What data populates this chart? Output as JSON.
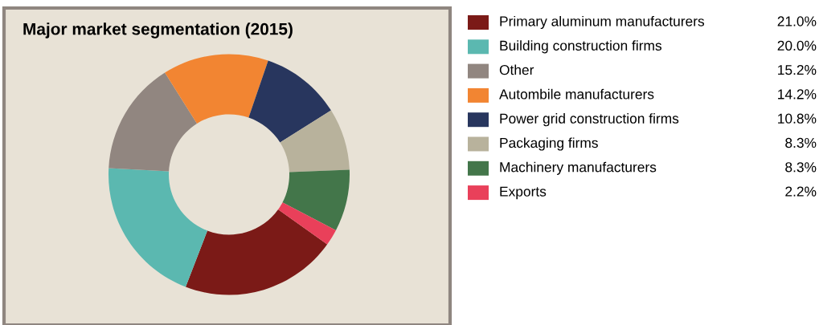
{
  "chart_data": {
    "type": "donut",
    "title": "Major market segmentation (2015)",
    "categories": [
      "Primary aluminum manufacturers",
      "Building construction firms",
      "Other",
      "Autombile manufacturers",
      "Power grid construction firms",
      "Packaging firms",
      "Machinery manufacturers",
      "Exports"
    ],
    "values": [
      21.0,
      20.0,
      15.2,
      14.2,
      10.8,
      8.3,
      8.3,
      2.2
    ],
    "value_labels": [
      "21.0%",
      "20.0%",
      "15.2%",
      "14.2%",
      "10.8%",
      "8.3%",
      "8.3%",
      "2.2%"
    ],
    "colors": [
      "#7b1a17",
      "#5bb8b0",
      "#918680",
      "#f28532",
      "#28365e",
      "#b8b29c",
      "#43764a",
      "#e9405a"
    ],
    "legend": "right"
  }
}
